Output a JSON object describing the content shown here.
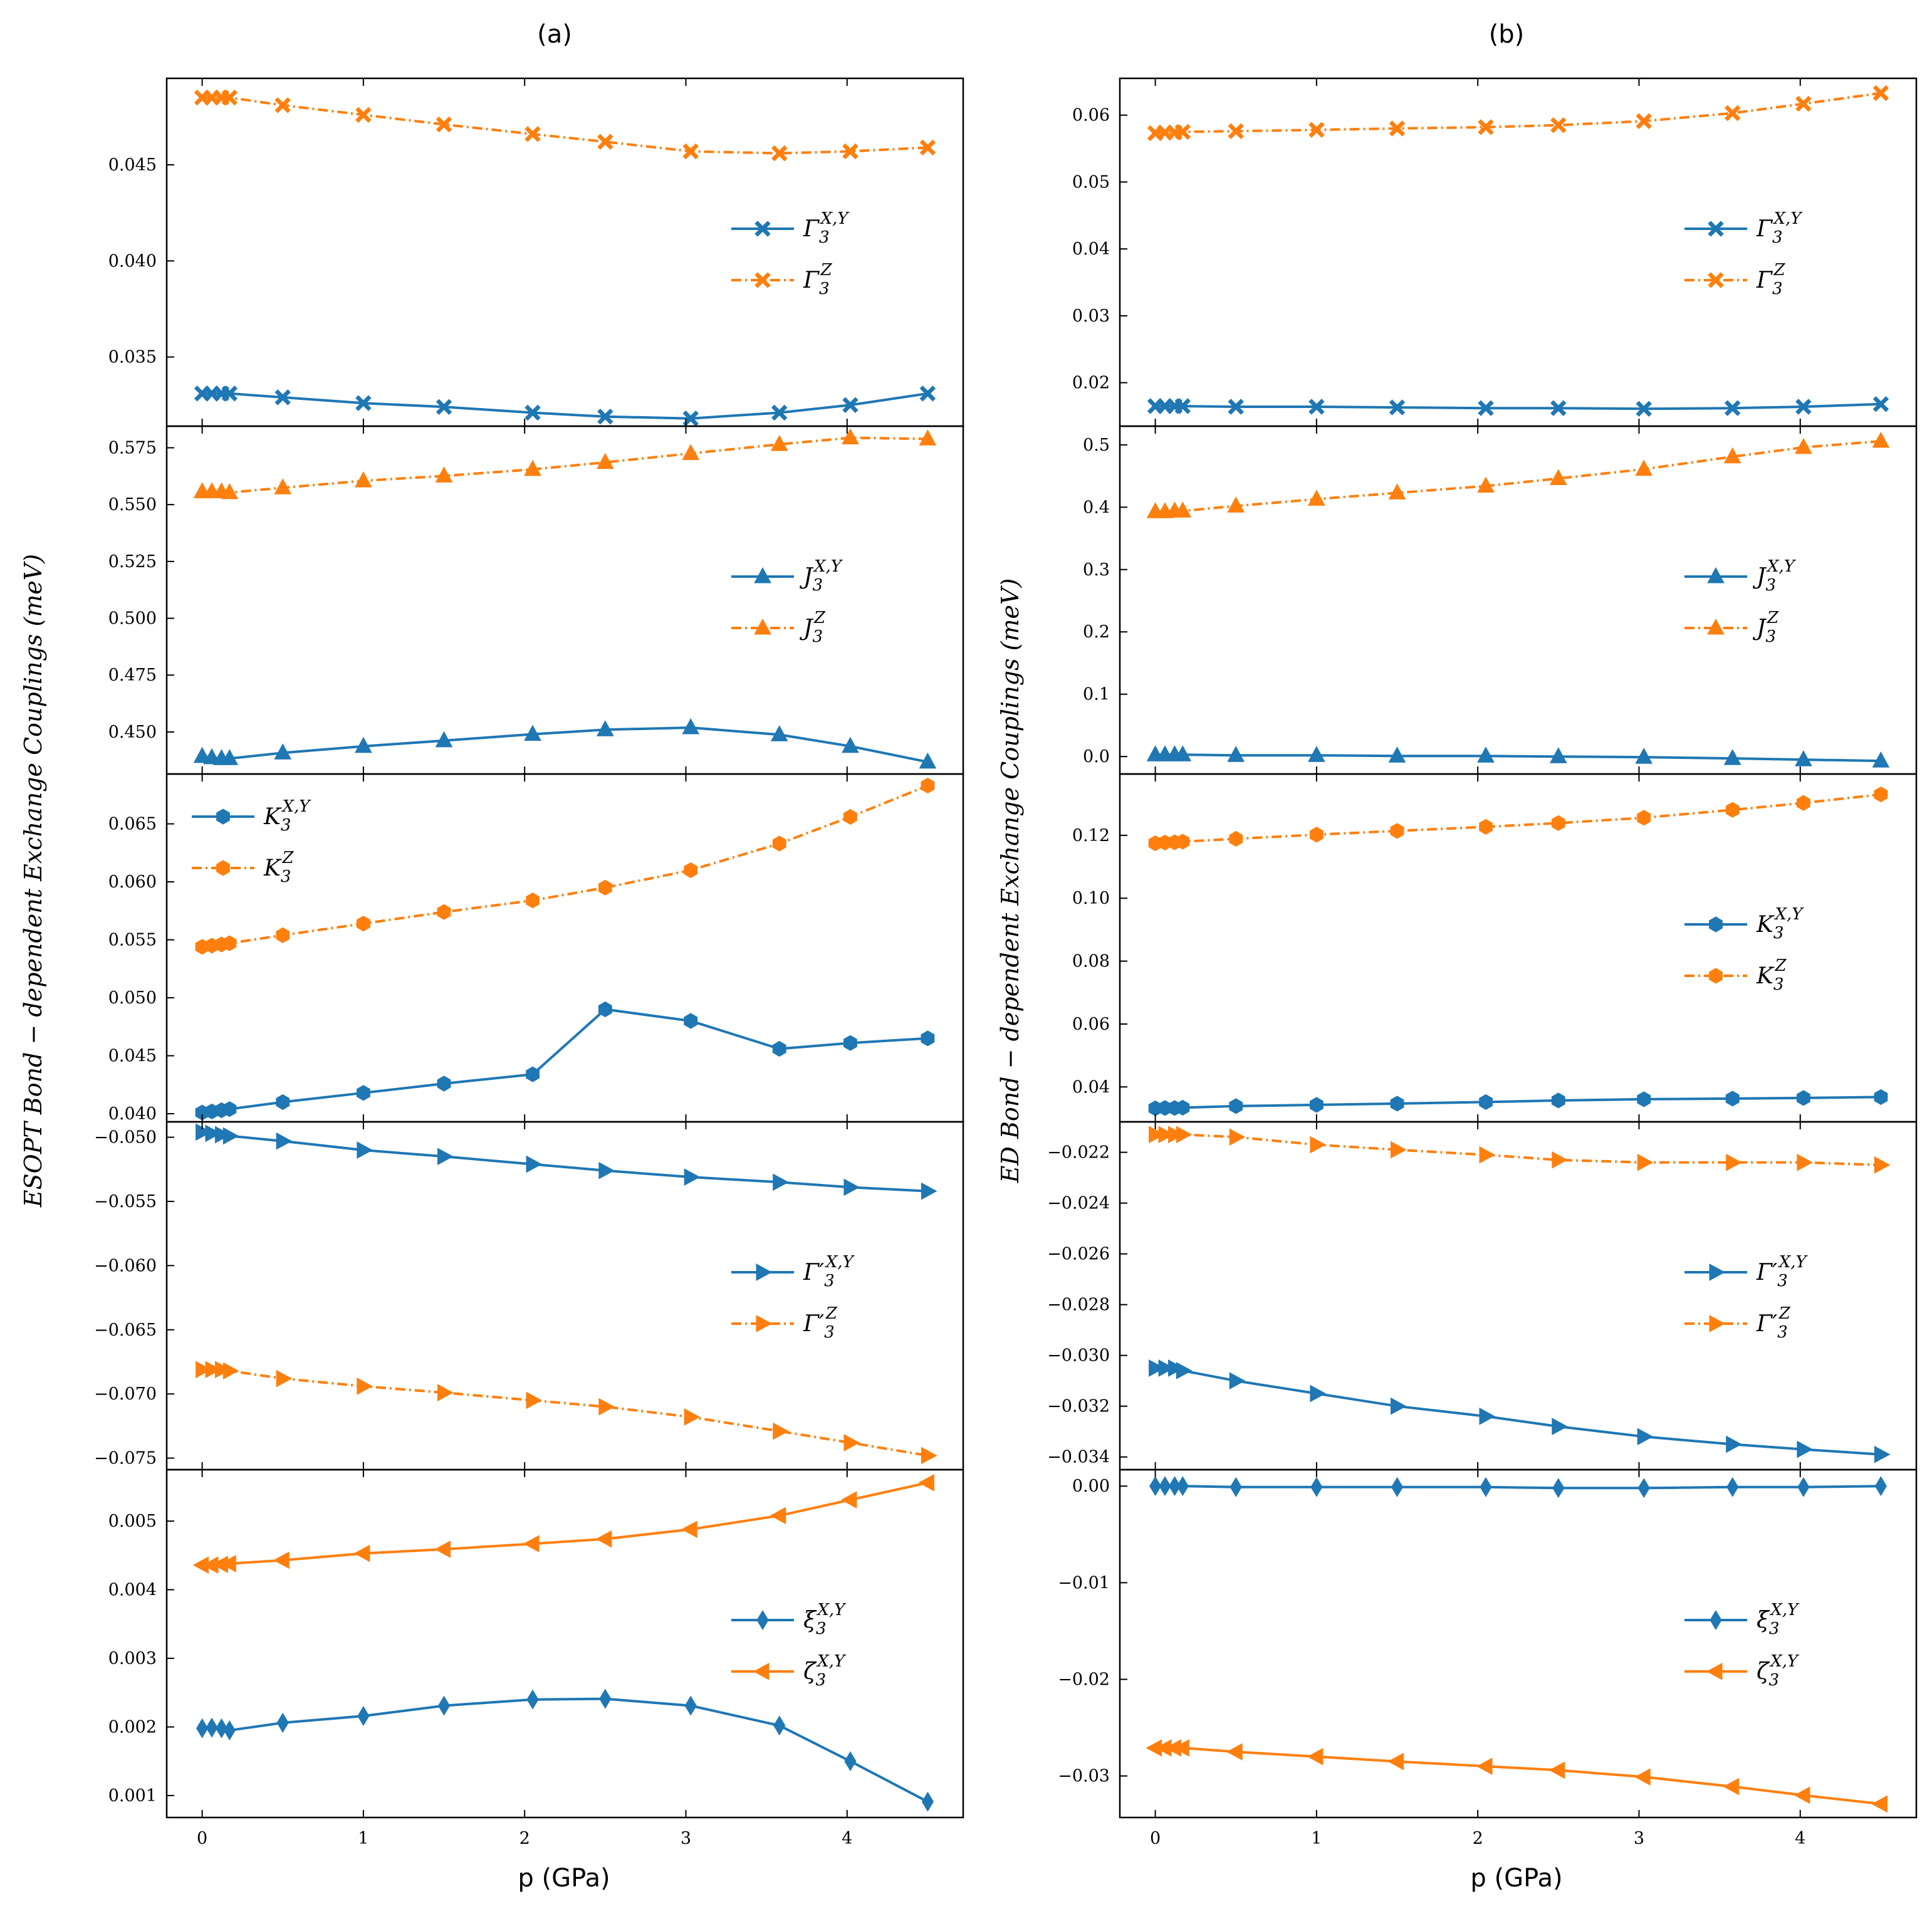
{
  "colors": {
    "series_xy": "#1f77b4",
    "series_z": "#ff7f0e",
    "axis": "#000000"
  },
  "figure": {
    "column_titles": [
      "(a)",
      "(b)"
    ],
    "xlabel": "p (GPa)",
    "ylabels": [
      "ESOPT Bond − dependent Exchange Couplings (meV)",
      "ED Bond − dependent Exchange Couplings (meV)"
    ]
  },
  "chart_data": [
    {
      "type": "line",
      "column": "(a)",
      "row": 1,
      "x": [
        0,
        0.06,
        0.12,
        0.17,
        0.5,
        1.0,
        1.5,
        2.05,
        2.5,
        3.03,
        3.58,
        4.02,
        4.5
      ],
      "xlim": [
        -0.22,
        4.72
      ],
      "xticks": [
        0,
        1,
        2,
        3,
        4
      ],
      "ylim": [
        0.0314,
        0.0495
      ],
      "yticks": [
        0.035,
        0.04,
        0.045
      ],
      "yticklabels": [
        "0.035",
        "0.040",
        "0.045"
      ],
      "legend_position": "right",
      "series": [
        {
          "name": "Γ3^{X,Y}",
          "legend_base": "Γ",
          "legend_sub": "3",
          "legend_sup": "X,Y",
          "marker": "x",
          "style": "solid",
          "values": [
            0.0331,
            0.0331,
            0.0331,
            0.0331,
            0.0329,
            0.0326,
            0.0324,
            0.0321,
            0.0319,
            0.0318,
            0.0321,
            0.0325,
            0.0331
          ]
        },
        {
          "name": "Γ3^{Z}",
          "legend_base": "Γ",
          "legend_sub": "3",
          "legend_sup": "Z",
          "marker": "x",
          "style": "dashdot",
          "values": [
            0.0485,
            0.0485,
            0.0485,
            0.0485,
            0.0481,
            0.0476,
            0.0471,
            0.0466,
            0.0462,
            0.0457,
            0.0456,
            0.0457,
            0.0459
          ]
        }
      ]
    },
    {
      "type": "line",
      "column": "(a)",
      "row": 2,
      "x": [
        0,
        0.06,
        0.12,
        0.17,
        0.5,
        1.0,
        1.5,
        2.05,
        2.5,
        3.03,
        3.58,
        4.02,
        4.5
      ],
      "xlim": [
        -0.22,
        4.72
      ],
      "xticks": [
        0,
        1,
        2,
        3,
        4
      ],
      "ylim": [
        0.4315,
        0.5845
      ],
      "yticks": [
        0.45,
        0.475,
        0.5,
        0.525,
        0.55,
        0.575
      ],
      "yticklabels": [
        "0.450",
        "0.475",
        "0.500",
        "0.525",
        "0.550",
        "0.575"
      ],
      "legend_position": "right",
      "series": [
        {
          "name": "J3^{X,Y}",
          "legend_base": "J",
          "legend_sub": "3",
          "legend_sup": "X,Y",
          "marker": "triangle-up",
          "style": "solid",
          "values": [
            0.4393,
            0.4387,
            0.4383,
            0.4383,
            0.4408,
            0.4437,
            0.4462,
            0.449,
            0.451,
            0.4519,
            0.4488,
            0.4437,
            0.4368
          ]
        },
        {
          "name": "J3^{Z}",
          "legend_base": "J",
          "legend_sub": "3",
          "legend_sup": "Z",
          "marker": "triangle-up",
          "style": "dashdot",
          "values": [
            0.5557,
            0.5557,
            0.5557,
            0.5553,
            0.5574,
            0.5605,
            0.5626,
            0.5655,
            0.5686,
            0.5725,
            0.5765,
            0.5794,
            0.5789
          ]
        }
      ]
    },
    {
      "type": "line",
      "column": "(a)",
      "row": 3,
      "x": [
        0,
        0.06,
        0.12,
        0.17,
        0.5,
        1.0,
        1.5,
        2.05,
        2.5,
        3.03,
        3.58,
        4.02,
        4.5
      ],
      "xlim": [
        -0.22,
        4.72
      ],
      "xticks": [
        0,
        1,
        2,
        3,
        4
      ],
      "ylim": [
        0.0393,
        0.0693
      ],
      "yticks": [
        0.04,
        0.045,
        0.05,
        0.055,
        0.06,
        0.065
      ],
      "yticklabels": [
        "0.040",
        "0.045",
        "0.050",
        "0.055",
        "0.060",
        "0.065"
      ],
      "legend_position": "top-left",
      "series": [
        {
          "name": "K3^{X,Y}",
          "legend_base": "K",
          "legend_sub": "3",
          "legend_sup": "X,Y",
          "marker": "hexagon",
          "style": "solid",
          "values": [
            0.0401,
            0.0402,
            0.0403,
            0.0404,
            0.041,
            0.0418,
            0.0426,
            0.0434,
            0.049,
            0.048,
            0.0456,
            0.0461,
            0.0465
          ]
        },
        {
          "name": "K3^{Z}",
          "legend_base": "K",
          "legend_sub": "3",
          "legend_sup": "Z",
          "marker": "hexagon",
          "style": "dashdot",
          "values": [
            0.0544,
            0.0545,
            0.0546,
            0.0547,
            0.0554,
            0.0564,
            0.0574,
            0.0584,
            0.0595,
            0.061,
            0.0633,
            0.0656,
            0.0683
          ]
        }
      ]
    },
    {
      "type": "line",
      "column": "(a)",
      "row": 4,
      "x": [
        0,
        0.06,
        0.12,
        0.17,
        0.5,
        1.0,
        1.5,
        2.05,
        2.5,
        3.03,
        3.58,
        4.02,
        4.5
      ],
      "xlim": [
        -0.22,
        4.72
      ],
      "xticks": [
        0,
        1,
        2,
        3,
        4
      ],
      "ylim": [
        -0.0759,
        -0.0488
      ],
      "yticks": [
        -0.075,
        -0.07,
        -0.065,
        -0.06,
        -0.055,
        -0.05
      ],
      "yticklabels": [
        "−0.075",
        "−0.070",
        "−0.065",
        "−0.060",
        "−0.055",
        "−0.050"
      ],
      "legend_position": "right",
      "series": [
        {
          "name": "Γ′3^{X,Y}",
          "legend_base": "Γ′",
          "legend_sub": "3",
          "legend_sup": "X,Y",
          "marker": "triangle-right",
          "style": "solid",
          "values": [
            -0.0496,
            -0.0497,
            -0.0498,
            -0.0499,
            -0.0503,
            -0.051,
            -0.0515,
            -0.0521,
            -0.0526,
            -0.0531,
            -0.0535,
            -0.0539,
            -0.0542
          ]
        },
        {
          "name": "Γ′3^{Z}",
          "legend_base": "Γ′",
          "legend_sub": "3",
          "legend_sup": "Z",
          "marker": "triangle-right",
          "style": "dashdot",
          "values": [
            -0.0681,
            -0.0681,
            -0.0681,
            -0.0682,
            -0.0688,
            -0.0694,
            -0.0699,
            -0.0705,
            -0.071,
            -0.0718,
            -0.0729,
            -0.0738,
            -0.0748
          ]
        }
      ]
    },
    {
      "type": "line",
      "column": "(a)",
      "row": 5,
      "x": [
        0,
        0.06,
        0.12,
        0.17,
        0.5,
        1.0,
        1.5,
        2.05,
        2.5,
        3.03,
        3.58,
        4.02,
        4.5
      ],
      "xlim": [
        -0.22,
        4.72
      ],
      "xticks": [
        0,
        1,
        2,
        3,
        4
      ],
      "ylim": [
        0.00068,
        0.00575
      ],
      "yticks": [
        0.001,
        0.002,
        0.003,
        0.004,
        0.005
      ],
      "yticklabels": [
        "0.001",
        "0.002",
        "0.003",
        "0.004",
        "0.005"
      ],
      "legend_position": "right",
      "series": [
        {
          "name": "ξ3^{X,Y}",
          "legend_base": "ξ",
          "legend_sub": "3",
          "legend_sup": "X,Y",
          "marker": "diamond",
          "style": "solid",
          "values": [
            0.00198,
            0.00199,
            0.00198,
            0.00195,
            0.00206,
            0.00216,
            0.00231,
            0.0024,
            0.00241,
            0.00231,
            0.00202,
            0.0015,
            0.00091
          ]
        },
        {
          "name": "ζ3^{X,Y}",
          "legend_base": "ζ",
          "legend_sub": "3",
          "legend_sup": "X,Y",
          "marker": "triangle-left",
          "style": "solid",
          "values": [
            0.00436,
            0.00436,
            0.00437,
            0.00438,
            0.00443,
            0.00453,
            0.00459,
            0.00467,
            0.00474,
            0.00488,
            0.00508,
            0.00531,
            0.00556
          ]
        }
      ]
    },
    {
      "type": "line",
      "column": "(b)",
      "row": 1,
      "x": [
        0,
        0.06,
        0.12,
        0.17,
        0.5,
        1.0,
        1.5,
        2.05,
        2.5,
        3.03,
        3.58,
        4.02,
        4.5
      ],
      "xlim": [
        -0.22,
        4.72
      ],
      "xticks": [
        0,
        1,
        2,
        3,
        4
      ],
      "ylim": [
        0.0135,
        0.0655
      ],
      "yticks": [
        0.02,
        0.03,
        0.04,
        0.05,
        0.06
      ],
      "yticklabels": [
        "0.02",
        "0.03",
        "0.04",
        "0.05",
        "0.06"
      ],
      "legend_position": "right",
      "series": [
        {
          "name": "Γ3^{X,Y}",
          "legend_base": "Γ",
          "legend_sub": "3",
          "legend_sup": "X,Y",
          "marker": "x",
          "style": "solid",
          "values": [
            0.0165,
            0.0165,
            0.0165,
            0.0165,
            0.0164,
            0.0164,
            0.0163,
            0.0162,
            0.0162,
            0.0161,
            0.0162,
            0.0164,
            0.0168
          ]
        },
        {
          "name": "Γ3^{Z}",
          "legend_base": "Γ",
          "legend_sub": "3",
          "legend_sup": "Z",
          "marker": "x",
          "style": "dashdot",
          "values": [
            0.0573,
            0.0574,
            0.0574,
            0.0575,
            0.0576,
            0.0578,
            0.058,
            0.0582,
            0.0585,
            0.0591,
            0.0603,
            0.0617,
            0.0633
          ]
        }
      ]
    },
    {
      "type": "line",
      "column": "(b)",
      "row": 2,
      "x": [
        0,
        0.06,
        0.12,
        0.17,
        0.5,
        1.0,
        1.5,
        2.05,
        2.5,
        3.03,
        3.58,
        4.02,
        4.5
      ],
      "xlim": [
        -0.22,
        4.72
      ],
      "xticks": [
        0,
        1,
        2,
        3,
        4
      ],
      "ylim": [
        -0.028,
        0.53
      ],
      "yticks": [
        0.0,
        0.1,
        0.2,
        0.3,
        0.4,
        0.5
      ],
      "yticklabels": [
        "0.0",
        "0.1",
        "0.2",
        "0.3",
        "0.4",
        "0.5"
      ],
      "legend_position": "right",
      "series": [
        {
          "name": "J3^{X,Y}",
          "legend_base": "J",
          "legend_sub": "3",
          "legend_sup": "X,Y",
          "marker": "triangle-up",
          "style": "solid",
          "values": [
            0.003,
            0.003,
            0.003,
            0.003,
            0.002,
            0.002,
            0.001,
            0.001,
            0.0,
            -0.001,
            -0.003,
            -0.005,
            -0.007
          ]
        },
        {
          "name": "J3^{Z}",
          "legend_base": "J",
          "legend_sub": "3",
          "legend_sup": "Z",
          "marker": "triangle-up",
          "style": "dashdot",
          "values": [
            0.393,
            0.393,
            0.394,
            0.394,
            0.402,
            0.413,
            0.423,
            0.434,
            0.446,
            0.461,
            0.481,
            0.496,
            0.506
          ]
        }
      ]
    },
    {
      "type": "line",
      "column": "(b)",
      "row": 3,
      "x": [
        0,
        0.06,
        0.12,
        0.17,
        0.5,
        1.0,
        1.5,
        2.05,
        2.5,
        3.03,
        3.58,
        4.02,
        4.5
      ],
      "xlim": [
        -0.22,
        4.72
      ],
      "xticks": [
        0,
        1,
        2,
        3,
        4
      ],
      "ylim": [
        0.0289,
        0.1395
      ],
      "yticks": [
        0.04,
        0.06,
        0.08,
        0.1,
        0.12
      ],
      "yticklabels": [
        "0.04",
        "0.06",
        "0.08",
        "0.10",
        "0.12"
      ],
      "legend_position": "right",
      "series": [
        {
          "name": "K3^{X,Y}",
          "legend_base": "K",
          "legend_sub": "3",
          "legend_sup": "X,Y",
          "marker": "hexagon",
          "style": "solid",
          "values": [
            0.0332,
            0.0333,
            0.0333,
            0.0334,
            0.0339,
            0.0343,
            0.0347,
            0.0352,
            0.0357,
            0.0361,
            0.0363,
            0.0365,
            0.0368
          ]
        },
        {
          "name": "K3^{Z}",
          "legend_base": "K",
          "legend_sub": "3",
          "legend_sup": "Z",
          "marker": "hexagon",
          "style": "dashdot",
          "values": [
            0.1175,
            0.1177,
            0.1178,
            0.118,
            0.1189,
            0.1202,
            0.1214,
            0.1227,
            0.1239,
            0.1256,
            0.1281,
            0.1303,
            0.133
          ]
        }
      ]
    },
    {
      "type": "line",
      "column": "(b)",
      "row": 4,
      "x": [
        0,
        0.06,
        0.12,
        0.17,
        0.5,
        1.0,
        1.5,
        2.05,
        2.5,
        3.03,
        3.58,
        4.02,
        4.5
      ],
      "xlim": [
        -0.22,
        4.72
      ],
      "xticks": [
        0,
        1,
        2,
        3,
        4
      ],
      "ylim": [
        -0.0345,
        -0.0208
      ],
      "yticks": [
        -0.034,
        -0.032,
        -0.03,
        -0.028,
        -0.026,
        -0.024,
        -0.022
      ],
      "yticklabels": [
        "−0.034",
        "−0.032",
        "−0.030",
        "−0.028",
        "−0.026",
        "−0.024",
        "−0.022"
      ],
      "legend_position": "right",
      "series": [
        {
          "name": "Γ′3^{X,Y}",
          "legend_base": "Γ′",
          "legend_sub": "3",
          "legend_sup": "X,Y",
          "marker": "triangle-right",
          "style": "solid",
          "values": [
            -0.0305,
            -0.0305,
            -0.0305,
            -0.0306,
            -0.031,
            -0.0315,
            -0.032,
            -0.0324,
            -0.0328,
            -0.0332,
            -0.0335,
            -0.0337,
            -0.0339
          ]
        },
        {
          "name": "Γ′3^{Z}",
          "legend_base": "Γ′",
          "legend_sub": "3",
          "legend_sup": "Z",
          "marker": "triangle-right",
          "style": "dashdot",
          "values": [
            -0.0213,
            -0.0213,
            -0.0213,
            -0.0213,
            -0.0214,
            -0.0217,
            -0.0219,
            -0.0221,
            -0.0223,
            -0.0224,
            -0.0224,
            -0.0224,
            -0.0225
          ]
        }
      ]
    },
    {
      "type": "line",
      "column": "(b)",
      "row": 5,
      "x": [
        0,
        0.06,
        0.12,
        0.17,
        0.5,
        1.0,
        1.5,
        2.05,
        2.5,
        3.03,
        3.58,
        4.02,
        4.5
      ],
      "xlim": [
        -0.22,
        4.72
      ],
      "xticks": [
        0,
        1,
        2,
        3,
        4
      ],
      "ylim": [
        -0.0343,
        0.0017
      ],
      "yticks": [
        -0.03,
        -0.02,
        -0.01,
        0.0
      ],
      "yticklabels": [
        "−0.03",
        "−0.02",
        "−0.01",
        "0.00"
      ],
      "legend_position": "right",
      "series": [
        {
          "name": "ξ3^{X,Y}",
          "legend_base": "ξ",
          "legend_sub": "3",
          "legend_sup": "X,Y",
          "marker": "diamond",
          "style": "solid",
          "values": [
            0.0,
            0.0,
            0.0,
            0.0,
            -0.0001,
            -0.0001,
            -0.0001,
            -0.0001,
            -0.0002,
            -0.0002,
            -0.0001,
            -0.0001,
            0.0
          ]
        },
        {
          "name": "ζ3^{X,Y}",
          "legend_base": "ζ",
          "legend_sub": "3",
          "legend_sup": "X,Y",
          "marker": "triangle-left",
          "style": "solid",
          "values": [
            -0.0271,
            -0.0271,
            -0.0271,
            -0.0271,
            -0.0275,
            -0.028,
            -0.0285,
            -0.029,
            -0.0294,
            -0.0301,
            -0.0311,
            -0.032,
            -0.0329
          ]
        }
      ]
    }
  ]
}
